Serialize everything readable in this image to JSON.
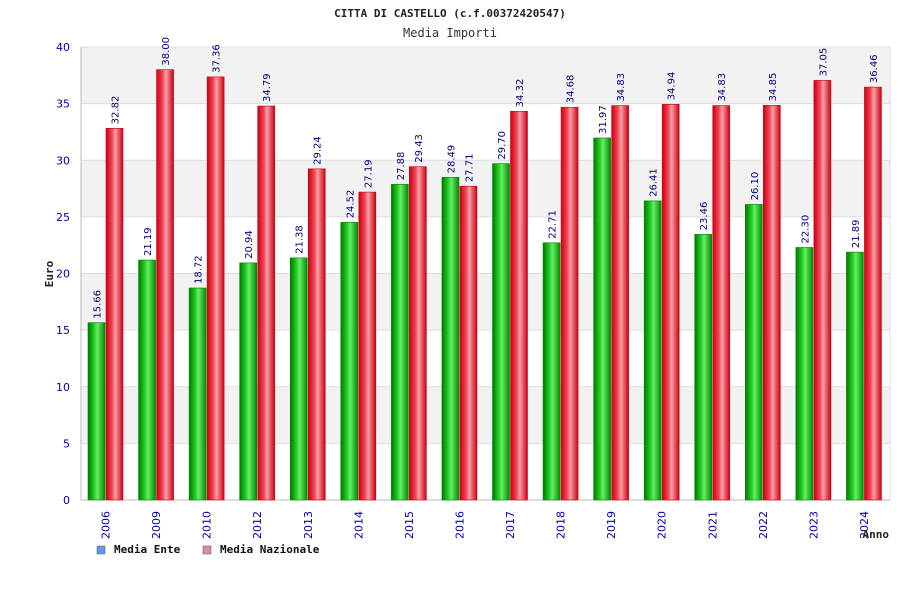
{
  "chart_data": {
    "type": "bar",
    "title": "CITTA DI CASTELLO (c.f.00372420547)",
    "subtitle": "Media Importi",
    "xlabel": "Anno",
    "ylabel": "Euro",
    "ylim": [
      0,
      40
    ],
    "yticks": [
      "0",
      "5",
      "10",
      "15",
      "20",
      "25",
      "30",
      "35",
      "40"
    ],
    "grid": true,
    "legend_position": "bottom-left",
    "categories": [
      "2006",
      "2009",
      "2010",
      "2012",
      "2013",
      "2014",
      "2015",
      "2016",
      "2017",
      "2018",
      "2019",
      "2020",
      "2021",
      "2022",
      "2023",
      "2024"
    ],
    "series": [
      {
        "name": "Media Ente",
        "color": "#22bb22",
        "legend_color": "#6699ee",
        "values": [
          15.66,
          21.19,
          18.72,
          20.94,
          21.38,
          24.52,
          27.88,
          28.49,
          29.7,
          22.71,
          31.97,
          26.41,
          23.46,
          26.1,
          22.3,
          21.89
        ],
        "labels": [
          "15.66",
          "21.19",
          "18.72",
          "20.94",
          "21.38",
          "24.52",
          "27.88",
          "28.49",
          "29.70",
          "22.71",
          "31.97",
          "26.41",
          "23.46",
          "26.10",
          "22.30",
          "21.89"
        ]
      },
      {
        "name": "Media Nazionale",
        "color": "#ee2233",
        "legend_color": "#dd88aa",
        "values": [
          32.82,
          38.0,
          37.36,
          34.79,
          29.24,
          27.19,
          29.43,
          27.71,
          34.32,
          34.68,
          34.83,
          34.94,
          34.83,
          34.85,
          37.05,
          36.46
        ],
        "labels": [
          "32.82",
          "38.00",
          "37.36",
          "34.79",
          "29.24",
          "27.19",
          "29.43",
          "27.71",
          "34.32",
          "34.68",
          "34.83",
          "34.94",
          "34.83",
          "34.85",
          "37.05",
          "36.46"
        ]
      }
    ]
  }
}
